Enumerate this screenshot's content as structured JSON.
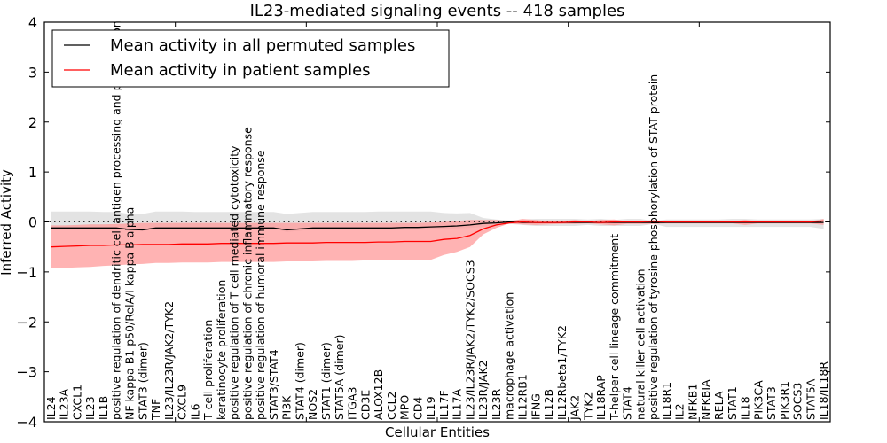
{
  "chart_data": {
    "type": "line",
    "title": "IL23-mediated signaling events -- 418 samples",
    "xlabel": "Cellular Entities",
    "ylabel": "Inferred Activity",
    "ylim": [
      -4,
      4
    ],
    "yticks": [
      -4,
      -3,
      -2,
      -1,
      0,
      1,
      2,
      3,
      4
    ],
    "ytick_labels": [
      "−4",
      "−3",
      "−2",
      "−1",
      "0",
      "1",
      "2",
      "3",
      "4"
    ],
    "grid": false,
    "reference_line": {
      "y": 0,
      "style": "dotted"
    },
    "legend": {
      "placement": "top-left",
      "entries": [
        {
          "label": "Mean activity in all permuted samples",
          "color": "#000000"
        },
        {
          "label": "Mean activity in patient samples",
          "color": "#ff0000"
        }
      ]
    },
    "colors": {
      "permuted_line": "#000000",
      "permuted_band": "#d9d9d9",
      "patient_line": "#ff0000",
      "patient_band": "#ff9999"
    },
    "categories": [
      "IL24",
      "IL23A",
      "CXCL1",
      "IL23",
      "IL1B",
      "positive regulation of dendritic cell antigen processing and presentation",
      "NF kappa B1 p50/RelA/I kappa B alpha",
      "STAT3 (dimer)",
      "TNF",
      "IL23/IL23R/JAK2/TYK2",
      "CXCL9",
      "IL6",
      "T cell proliferation",
      "keratinocyte proliferation",
      "positive regulation of T cell mediated cytotoxicity",
      "positive regulation of chronic inflammatory response",
      "positive regulation of humoral immune response",
      "STAT3/STAT4",
      "PI3K",
      "STAT4 (dimer)",
      "NOS2",
      "STAT1 (dimer)",
      "STAT5A (dimer)",
      "ITGA3",
      "CD3E",
      "ALOX12B",
      "CCL2",
      "MPO",
      "CD4",
      "IL19",
      "IL17F",
      "IL17A",
      "IL23/IL23R/JAK2/TYK2/SOCS3",
      "IL23R/JAK2",
      "IL23R",
      "macrophage activation",
      "IL12RB1",
      "IFNG",
      "IL12B",
      "IL12Rbeta1/TYK2",
      "JAK2",
      "TYK2",
      "IL18RAP",
      "T-helper cell lineage commitment",
      "STAT4",
      "natural killer cell activation",
      "positive regulation of tyrosine phosphorylation of STAT protein",
      "IL18R1",
      "IL2",
      "NFKB1",
      "NFKBIA",
      "RELA",
      "STAT1",
      "IL18",
      "PIK3CA",
      "STAT3",
      "PIK3R1",
      "SOCS3",
      "STAT5A",
      "IL18/IL18R"
    ],
    "series": [
      {
        "name": "Mean activity in all permuted samples",
        "values": [
          -0.12,
          -0.12,
          -0.12,
          -0.12,
          -0.12,
          -0.12,
          -0.15,
          -0.16,
          -0.12,
          -0.12,
          -0.12,
          -0.12,
          -0.12,
          -0.12,
          -0.12,
          -0.12,
          -0.12,
          -0.12,
          -0.16,
          -0.14,
          -0.12,
          -0.12,
          -0.12,
          -0.12,
          -0.12,
          -0.12,
          -0.12,
          -0.11,
          -0.11,
          -0.1,
          -0.09,
          -0.08,
          -0.06,
          -0.03,
          -0.02,
          0.0,
          -0.01,
          -0.01,
          -0.01,
          -0.01,
          -0.01,
          -0.01,
          -0.01,
          -0.01,
          -0.01,
          -0.01,
          -0.01,
          -0.01,
          -0.01,
          -0.01,
          -0.01,
          -0.01,
          -0.01,
          -0.01,
          -0.01,
          -0.01,
          -0.01,
          -0.01,
          -0.01,
          -0.01
        ],
        "band_upper": [
          0.21,
          0.21,
          0.21,
          0.21,
          0.2,
          0.2,
          0.16,
          0.16,
          0.21,
          0.21,
          0.21,
          0.2,
          0.2,
          0.2,
          0.2,
          0.2,
          0.2,
          0.2,
          0.16,
          0.18,
          0.2,
          0.2,
          0.2,
          0.2,
          0.2,
          0.21,
          0.21,
          0.21,
          0.21,
          0.21,
          0.18,
          0.17,
          0.18,
          0.08,
          0.05,
          0.03,
          0.05,
          0.06,
          0.06,
          0.06,
          0.06,
          0.05,
          0.06,
          0.04,
          0.06,
          0.06,
          0.02,
          0.05,
          0.05,
          0.05,
          0.05,
          0.05,
          0.06,
          0.06,
          0.05,
          0.05,
          0.05,
          0.05,
          0.05,
          0.06
        ],
        "band_lower": [
          -0.14,
          -0.14,
          -0.14,
          -0.14,
          -0.14,
          -0.14,
          -0.18,
          -0.18,
          -0.14,
          -0.14,
          -0.14,
          -0.14,
          -0.14,
          -0.14,
          -0.14,
          -0.14,
          -0.14,
          -0.14,
          -0.2,
          -0.18,
          -0.14,
          -0.14,
          -0.14,
          -0.14,
          -0.14,
          -0.14,
          -0.14,
          -0.14,
          -0.14,
          -0.14,
          -0.14,
          -0.13,
          -0.12,
          -0.1,
          -0.07,
          -0.04,
          -0.06,
          -0.08,
          -0.08,
          -0.08,
          -0.08,
          -0.06,
          -0.08,
          -0.08,
          -0.08,
          -0.08,
          -0.04,
          -0.1,
          -0.1,
          -0.1,
          -0.1,
          -0.1,
          -0.1,
          -0.1,
          -0.1,
          -0.1,
          -0.1,
          -0.1,
          -0.1,
          -0.14
        ]
      },
      {
        "name": "Mean activity in patient samples",
        "values": [
          -0.5,
          -0.49,
          -0.48,
          -0.47,
          -0.47,
          -0.46,
          -0.46,
          -0.45,
          -0.45,
          -0.45,
          -0.44,
          -0.44,
          -0.44,
          -0.43,
          -0.43,
          -0.43,
          -0.43,
          -0.43,
          -0.42,
          -0.42,
          -0.42,
          -0.41,
          -0.41,
          -0.41,
          -0.41,
          -0.4,
          -0.4,
          -0.39,
          -0.39,
          -0.39,
          -0.35,
          -0.33,
          -0.27,
          -0.14,
          -0.06,
          -0.02,
          0.0,
          -0.01,
          -0.01,
          -0.01,
          0.0,
          0.0,
          -0.01,
          0.0,
          0.0,
          0.0,
          0.01,
          0.0,
          0.0,
          0.0,
          0.0,
          0.0,
          0.0,
          0.0,
          0.0,
          0.0,
          0.0,
          0.0,
          0.0,
          0.02
        ],
        "band_upper": [
          -0.07,
          -0.07,
          -0.06,
          -0.05,
          -0.05,
          -0.04,
          -0.03,
          -0.02,
          -0.02,
          -0.02,
          -0.02,
          -0.02,
          -0.02,
          -0.02,
          -0.02,
          -0.02,
          -0.02,
          -0.02,
          -0.02,
          -0.02,
          -0.02,
          -0.02,
          -0.02,
          -0.02,
          -0.02,
          -0.02,
          -0.02,
          -0.02,
          -0.02,
          -0.01,
          0.0,
          0.02,
          0.04,
          0.04,
          0.04,
          0.01,
          0.06,
          0.04,
          0.01,
          0.01,
          0.04,
          0.01,
          0.04,
          0.05,
          0.01,
          0.01,
          0.04,
          0.01,
          0.01,
          0.01,
          0.01,
          0.01,
          0.01,
          0.04,
          0.01,
          0.01,
          0.01,
          0.01,
          0.01,
          0.06
        ],
        "band_lower": [
          -0.92,
          -0.92,
          -0.91,
          -0.9,
          -0.88,
          -0.87,
          -0.85,
          -0.84,
          -0.82,
          -0.82,
          -0.81,
          -0.81,
          -0.81,
          -0.8,
          -0.8,
          -0.8,
          -0.8,
          -0.8,
          -0.79,
          -0.79,
          -0.79,
          -0.78,
          -0.78,
          -0.78,
          -0.77,
          -0.77,
          -0.77,
          -0.76,
          -0.76,
          -0.76,
          -0.66,
          -0.6,
          -0.5,
          -0.25,
          -0.12,
          -0.03,
          -0.05,
          -0.06,
          -0.05,
          -0.04,
          -0.04,
          -0.03,
          -0.05,
          -0.07,
          -0.04,
          -0.04,
          -0.04,
          -0.03,
          -0.03,
          -0.03,
          -0.03,
          -0.03,
          -0.03,
          -0.06,
          -0.03,
          -0.03,
          -0.03,
          -0.03,
          -0.03,
          -0.06
        ]
      }
    ]
  }
}
